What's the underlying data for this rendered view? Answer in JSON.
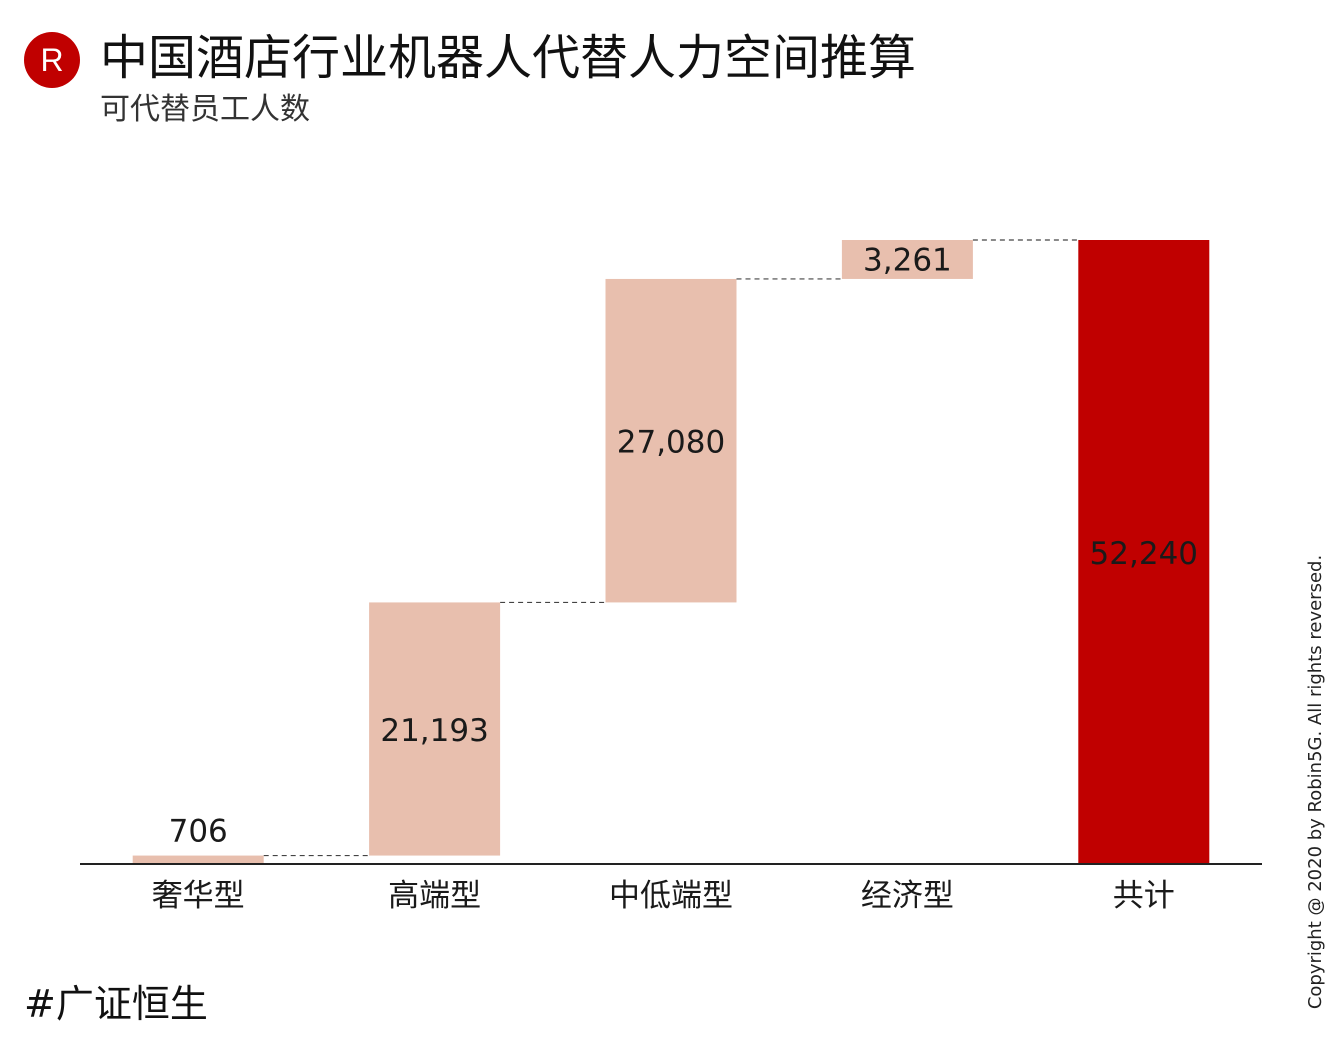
{
  "header": {
    "logo_letter": "R",
    "title": "中国酒店行业机器人代替人力空间推算",
    "subtitle": "可代替员工人数"
  },
  "footer": {
    "source": "#广证恒生",
    "copyright": "Copyright @ 2020 by Robin5G. All rights reversed."
  },
  "colors": {
    "brand_red": "#c00000",
    "increment_fill": "#e8bfae",
    "total_fill": "#c00000",
    "axis": "#222222",
    "connector": "#444444"
  },
  "chart_data": {
    "type": "bar",
    "subtype": "waterfall",
    "categories": [
      "奢华型",
      "高端型",
      "中低端型",
      "经济型",
      "共计"
    ],
    "values": [
      706,
      21193,
      27080,
      3261,
      52240
    ],
    "value_labels": [
      "706",
      "21,193",
      "27,080",
      "3,261",
      "52,240"
    ],
    "is_total": [
      false,
      false,
      false,
      false,
      true
    ],
    "ylim": [
      0,
      52240
    ],
    "connectors": "dashed",
    "grid": false,
    "legend": "none"
  }
}
